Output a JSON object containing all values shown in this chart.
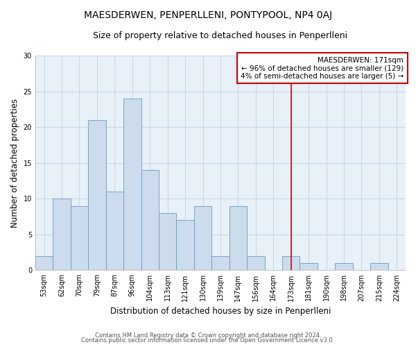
{
  "title": "MAESDERWEN, PENPERLLENI, PONTYPOOL, NP4 0AJ",
  "subtitle": "Size of property relative to detached houses in Penperlleni",
  "xlabel": "Distribution of detached houses by size in Penperlleni",
  "ylabel": "Number of detached properties",
  "bar_labels": [
    "53sqm",
    "62sqm",
    "70sqm",
    "79sqm",
    "87sqm",
    "96sqm",
    "104sqm",
    "113sqm",
    "121sqm",
    "130sqm",
    "139sqm",
    "147sqm",
    "156sqm",
    "164sqm",
    "173sqm",
    "181sqm",
    "190sqm",
    "198sqm",
    "207sqm",
    "215sqm",
    "224sqm"
  ],
  "bar_values": [
    2,
    10,
    9,
    21,
    11,
    24,
    14,
    8,
    7,
    9,
    2,
    9,
    2,
    0,
    2,
    1,
    0,
    1,
    0,
    1,
    0
  ],
  "bar_color": "#ccdcec",
  "bar_edge_color": "#6699cc",
  "grid_color": "#c8d8e8",
  "vline_x": 14,
  "vline_color": "#cc0000",
  "annotation_title": "MAESDERWEN: 171sqm",
  "annotation_line1": "← 96% of detached houses are smaller (129)",
  "annotation_line2": "4% of semi-detached houses are larger (5) →",
  "annotation_box_facecolor": "#ffffff",
  "annotation_box_edgecolor": "#cc0000",
  "ylim": [
    0,
    30
  ],
  "yticks": [
    0,
    5,
    10,
    15,
    20,
    25,
    30
  ],
  "footer1": "Contains HM Land Registry data © Crown copyright and database right 2024.",
  "footer2": "Contains public sector information licensed under the Open Government Licence v3.0.",
  "title_fontsize": 10,
  "subtitle_fontsize": 9,
  "axis_label_fontsize": 8.5,
  "tick_fontsize": 7,
  "annotation_fontsize": 7.5,
  "footer_fontsize": 6
}
